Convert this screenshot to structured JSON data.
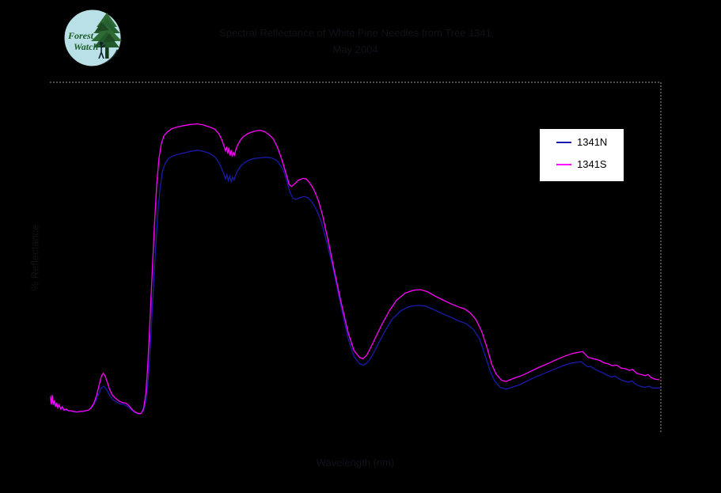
{
  "logo": {
    "line1": "Forest",
    "line2": "Watch"
  },
  "title": {
    "line1": "Spectral Reflectance of White Pine Needles from Tree 1341",
    "line2": "May 2004"
  },
  "axes": {
    "x_label": "Wavelength (nm)",
    "y_label": "% Reflectance"
  },
  "legend": {
    "items": [
      {
        "label": "1341N",
        "color": "#1a1aae"
      },
      {
        "label": "1341S",
        "color": "#ff00ff"
      }
    ]
  },
  "chart_data": {
    "type": "line",
    "title": "Spectral Reflectance of White Pine Needles from Tree 1341",
    "subtitle": "May 2004",
    "xlabel": "Wavelength (nm)",
    "ylabel": "% Reflectance",
    "xlim": [
      350,
      2500
    ],
    "ylim": [
      0,
      60
    ],
    "grid": false,
    "background": "#000000",
    "plot_border": {
      "sides": "top,right",
      "style": "dotted",
      "color": "#9a9a9a"
    },
    "legend_position": "upper right",
    "series": [
      {
        "name": "1341N",
        "color": "#1a1aae",
        "points": [
          [
            352,
            5.8
          ],
          [
            356,
            5.2
          ],
          [
            360,
            5.6
          ],
          [
            365,
            4.9
          ],
          [
            370,
            5.1
          ],
          [
            376,
            4.6
          ],
          [
            382,
            4.7
          ],
          [
            390,
            4.3
          ],
          [
            398,
            4.1
          ],
          [
            408,
            4.0
          ],
          [
            418,
            3.9
          ],
          [
            428,
            3.8
          ],
          [
            440,
            3.7
          ],
          [
            452,
            3.7
          ],
          [
            464,
            3.8
          ],
          [
            476,
            3.9
          ],
          [
            488,
            4.1
          ],
          [
            500,
            4.7
          ],
          [
            510,
            5.4
          ],
          [
            520,
            6.5
          ],
          [
            530,
            7.7
          ],
          [
            538,
            8.1
          ],
          [
            546,
            7.8
          ],
          [
            554,
            7.1
          ],
          [
            562,
            6.4
          ],
          [
            572,
            5.8
          ],
          [
            584,
            5.4
          ],
          [
            596,
            5.1
          ],
          [
            610,
            5.0
          ],
          [
            625,
            4.6
          ],
          [
            638,
            4.0
          ],
          [
            650,
            3.6
          ],
          [
            660,
            3.4
          ],
          [
            670,
            3.4
          ],
          [
            680,
            4.0
          ],
          [
            690,
            6.0
          ],
          [
            698,
            10.5
          ],
          [
            706,
            17.0
          ],
          [
            714,
            24.5
          ],
          [
            722,
            31.5
          ],
          [
            730,
            37.5
          ],
          [
            738,
            42.0
          ],
          [
            746,
            44.8
          ],
          [
            756,
            46.2
          ],
          [
            768,
            47.0
          ],
          [
            782,
            47.4
          ],
          [
            800,
            47.7
          ],
          [
            820,
            47.9
          ],
          [
            845,
            48.2
          ],
          [
            870,
            48.4
          ],
          [
            890,
            48.2
          ],
          [
            910,
            47.9
          ],
          [
            930,
            47.3
          ],
          [
            945,
            46.3
          ],
          [
            955,
            45.2
          ],
          [
            963,
            44.2
          ],
          [
            968,
            43.5
          ],
          [
            973,
            44.2
          ],
          [
            978,
            43.2
          ],
          [
            983,
            44.0
          ],
          [
            988,
            43.0
          ],
          [
            993,
            43.8
          ],
          [
            998,
            43.3
          ],
          [
            1004,
            44.2
          ],
          [
            1012,
            45.0
          ],
          [
            1022,
            45.7
          ],
          [
            1035,
            46.3
          ],
          [
            1050,
            46.7
          ],
          [
            1070,
            47.0
          ],
          [
            1090,
            47.1
          ],
          [
            1110,
            47.2
          ],
          [
            1130,
            47.1
          ],
          [
            1150,
            46.6
          ],
          [
            1170,
            45.2
          ],
          [
            1185,
            43.0
          ],
          [
            1195,
            41.2
          ],
          [
            1205,
            40.2
          ],
          [
            1215,
            40.0
          ],
          [
            1230,
            40.3
          ],
          [
            1245,
            40.5
          ],
          [
            1258,
            40.3
          ],
          [
            1272,
            39.6
          ],
          [
            1288,
            38.3
          ],
          [
            1305,
            36.2
          ],
          [
            1325,
            32.6
          ],
          [
            1350,
            27.4
          ],
          [
            1375,
            21.6
          ],
          [
            1400,
            16.2
          ],
          [
            1420,
            13.2
          ],
          [
            1440,
            11.9
          ],
          [
            1455,
            11.7
          ],
          [
            1470,
            12.3
          ],
          [
            1485,
            13.4
          ],
          [
            1505,
            15.3
          ],
          [
            1530,
            17.6
          ],
          [
            1555,
            19.6
          ],
          [
            1585,
            21.0
          ],
          [
            1615,
            21.7
          ],
          [
            1645,
            21.9
          ],
          [
            1672,
            21.8
          ],
          [
            1700,
            21.2
          ],
          [
            1730,
            20.5
          ],
          [
            1760,
            19.9
          ],
          [
            1790,
            19.2
          ],
          [
            1815,
            18.8
          ],
          [
            1840,
            17.8
          ],
          [
            1862,
            16.2
          ],
          [
            1880,
            13.6
          ],
          [
            1900,
            10.6
          ],
          [
            1915,
            9.0
          ],
          [
            1935,
            7.9
          ],
          [
            1955,
            7.6
          ],
          [
            1975,
            7.9
          ],
          [
            2000,
            8.3
          ],
          [
            2030,
            9.0
          ],
          [
            2060,
            9.7
          ],
          [
            2090,
            10.3
          ],
          [
            2120,
            10.9
          ],
          [
            2150,
            11.5
          ],
          [
            2180,
            12.0
          ],
          [
            2205,
            12.2
          ],
          [
            2220,
            12.3
          ],
          [
            2232,
            11.8
          ],
          [
            2242,
            11.4
          ],
          [
            2252,
            11.5
          ],
          [
            2265,
            11.1
          ],
          [
            2280,
            10.7
          ],
          [
            2295,
            10.4
          ],
          [
            2310,
            10.0
          ],
          [
            2325,
            9.7
          ],
          [
            2340,
            9.8
          ],
          [
            2355,
            9.3
          ],
          [
            2370,
            9.0
          ],
          [
            2385,
            8.8
          ],
          [
            2398,
            9.0
          ],
          [
            2412,
            8.4
          ],
          [
            2428,
            8.1
          ],
          [
            2444,
            7.9
          ],
          [
            2458,
            8.1
          ],
          [
            2470,
            7.8
          ],
          [
            2485,
            7.8
          ],
          [
            2498,
            7.8
          ]
        ]
      },
      {
        "name": "1341S",
        "color": "#ff00ff",
        "points": [
          [
            352,
            6.4
          ],
          [
            355,
            5.0
          ],
          [
            358,
            6.6
          ],
          [
            362,
            4.9
          ],
          [
            366,
            5.7
          ],
          [
            370,
            4.6
          ],
          [
            374,
            5.3
          ],
          [
            378,
            4.4
          ],
          [
            383,
            4.9
          ],
          [
            388,
            4.2
          ],
          [
            394,
            4.6
          ],
          [
            400,
            4.0
          ],
          [
            408,
            4.2
          ],
          [
            416,
            3.9
          ],
          [
            425,
            3.9
          ],
          [
            435,
            3.8
          ],
          [
            445,
            3.7
          ],
          [
            455,
            3.8
          ],
          [
            465,
            3.8
          ],
          [
            475,
            3.9
          ],
          [
            485,
            4.0
          ],
          [
            495,
            4.4
          ],
          [
            505,
            5.2
          ],
          [
            515,
            6.6
          ],
          [
            525,
            8.6
          ],
          [
            532,
            9.9
          ],
          [
            538,
            10.3
          ],
          [
            545,
            9.8
          ],
          [
            552,
            8.8
          ],
          [
            560,
            7.6
          ],
          [
            570,
            6.6
          ],
          [
            580,
            6.1
          ],
          [
            592,
            5.6
          ],
          [
            605,
            5.3
          ],
          [
            618,
            5.2
          ],
          [
            630,
            4.7
          ],
          [
            640,
            4.1
          ],
          [
            650,
            3.7
          ],
          [
            658,
            3.5
          ],
          [
            665,
            3.4
          ],
          [
            672,
            3.5
          ],
          [
            680,
            4.3
          ],
          [
            688,
            7.0
          ],
          [
            695,
            12.0
          ],
          [
            702,
            19.0
          ],
          [
            710,
            27.5
          ],
          [
            718,
            35.5
          ],
          [
            726,
            42.5
          ],
          [
            734,
            47.0
          ],
          [
            742,
            49.5
          ],
          [
            752,
            50.9
          ],
          [
            765,
            51.6
          ],
          [
            780,
            52.1
          ],
          [
            800,
            52.4
          ],
          [
            820,
            52.6
          ],
          [
            845,
            52.8
          ],
          [
            870,
            52.9
          ],
          [
            890,
            52.7
          ],
          [
            910,
            52.4
          ],
          [
            930,
            52.0
          ],
          [
            945,
            51.2
          ],
          [
            955,
            50.2
          ],
          [
            962,
            49.2
          ],
          [
            968,
            48.3
          ],
          [
            972,
            49.0
          ],
          [
            976,
            47.8
          ],
          [
            980,
            48.8
          ],
          [
            984,
            47.5
          ],
          [
            988,
            48.4
          ],
          [
            992,
            47.3
          ],
          [
            996,
            48.0
          ],
          [
            1000,
            47.6
          ],
          [
            1005,
            48.6
          ],
          [
            1012,
            49.4
          ],
          [
            1020,
            50.1
          ],
          [
            1030,
            50.7
          ],
          [
            1045,
            51.2
          ],
          [
            1060,
            51.5
          ],
          [
            1075,
            51.7
          ],
          [
            1090,
            51.8
          ],
          [
            1105,
            51.6
          ],
          [
            1120,
            51.1
          ],
          [
            1135,
            50.4
          ],
          [
            1150,
            49.0
          ],
          [
            1165,
            47.0
          ],
          [
            1180,
            44.6
          ],
          [
            1192,
            42.6
          ],
          [
            1200,
            42.2
          ],
          [
            1210,
            42.6
          ],
          [
            1225,
            43.3
          ],
          [
            1240,
            43.6
          ],
          [
            1252,
            43.5
          ],
          [
            1265,
            42.8
          ],
          [
            1280,
            41.6
          ],
          [
            1295,
            39.8
          ],
          [
            1310,
            37.2
          ],
          [
            1330,
            32.8
          ],
          [
            1350,
            28.0
          ],
          [
            1375,
            22.4
          ],
          [
            1400,
            17.2
          ],
          [
            1420,
            14.2
          ],
          [
            1440,
            13.0
          ],
          [
            1452,
            12.8
          ],
          [
            1465,
            13.4
          ],
          [
            1480,
            14.8
          ],
          [
            1500,
            16.8
          ],
          [
            1520,
            18.8
          ],
          [
            1545,
            21.0
          ],
          [
            1570,
            22.8
          ],
          [
            1600,
            24.0
          ],
          [
            1630,
            24.5
          ],
          [
            1655,
            24.6
          ],
          [
            1680,
            24.2
          ],
          [
            1705,
            23.5
          ],
          [
            1730,
            22.9
          ],
          [
            1760,
            22.2
          ],
          [
            1790,
            21.6
          ],
          [
            1810,
            21.3
          ],
          [
            1830,
            20.6
          ],
          [
            1850,
            19.4
          ],
          [
            1870,
            17.4
          ],
          [
            1890,
            14.4
          ],
          [
            1905,
            11.8
          ],
          [
            1920,
            10.2
          ],
          [
            1940,
            9.1
          ],
          [
            1955,
            8.9
          ],
          [
            1970,
            9.2
          ],
          [
            1990,
            9.6
          ],
          [
            2010,
            9.9
          ],
          [
            2040,
            10.6
          ],
          [
            2070,
            11.3
          ],
          [
            2100,
            11.9
          ],
          [
            2130,
            12.6
          ],
          [
            2160,
            13.2
          ],
          [
            2190,
            13.7
          ],
          [
            2210,
            13.9
          ],
          [
            2225,
            14.0
          ],
          [
            2235,
            13.5
          ],
          [
            2245,
            13.0
          ],
          [
            2255,
            12.9
          ],
          [
            2270,
            12.7
          ],
          [
            2285,
            12.5
          ],
          [
            2300,
            12.1
          ],
          [
            2315,
            11.9
          ],
          [
            2330,
            11.6
          ],
          [
            2345,
            11.7
          ],
          [
            2360,
            11.2
          ],
          [
            2375,
            11.1
          ],
          [
            2390,
            10.8
          ],
          [
            2400,
            11.0
          ],
          [
            2415,
            10.3
          ],
          [
            2430,
            10.1
          ],
          [
            2445,
            9.9
          ],
          [
            2455,
            10.1
          ],
          [
            2465,
            9.6
          ],
          [
            2480,
            9.3
          ],
          [
            2495,
            9.2
          ]
        ]
      }
    ]
  }
}
